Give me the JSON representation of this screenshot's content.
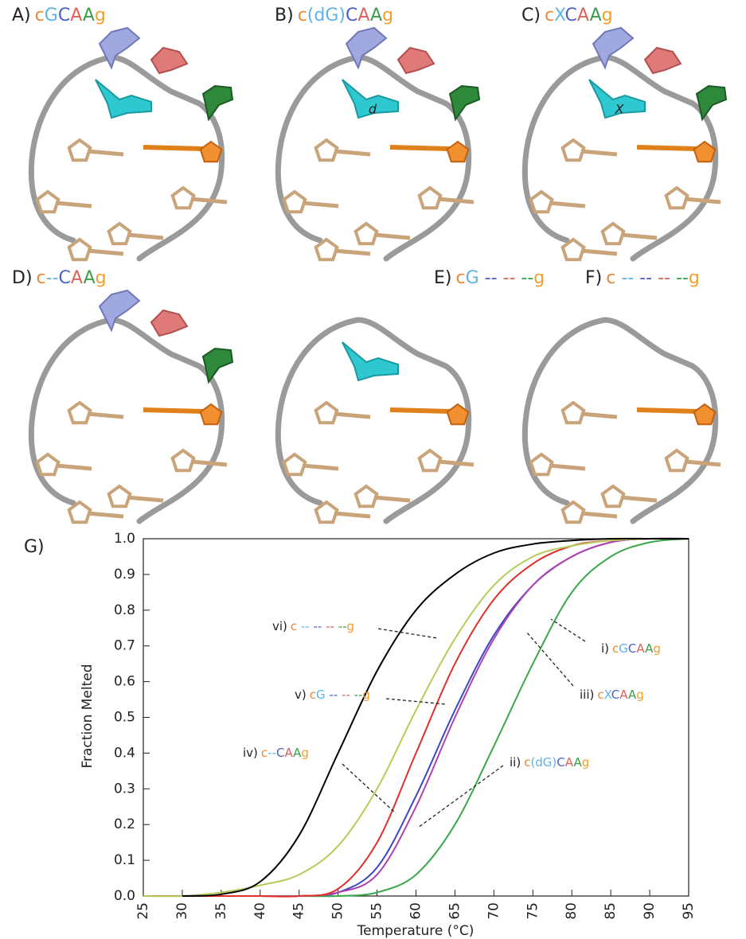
{
  "panels": [
    {
      "label": "A)",
      "parts": [
        {
          "text": "c",
          "color": "#e8893a"
        },
        {
          "text": "G",
          "color": "#5fb4e4"
        },
        {
          "text": "C",
          "color": "#4f5fc4"
        },
        {
          "text": "A",
          "color": "#e0605a"
        },
        {
          "text": "A",
          "color": "#3a9e4a"
        },
        {
          "text": "g",
          "color": "#f0a030"
        }
      ]
    },
    {
      "label": "B)",
      "parts": [
        {
          "text": "c",
          "color": "#e8893a"
        },
        {
          "text": "(dG)",
          "color": "#5fb4e4"
        },
        {
          "text": "C",
          "color": "#4f5fc4"
        },
        {
          "text": "A",
          "color": "#e0605a"
        },
        {
          "text": "A",
          "color": "#3a9e4a"
        },
        {
          "text": "g",
          "color": "#f0a030"
        }
      ],
      "marker": "d"
    },
    {
      "label": "C)",
      "parts": [
        {
          "text": "c",
          "color": "#e8893a"
        },
        {
          "text": "X",
          "color": "#5fb4e4"
        },
        {
          "text": "C",
          "color": "#4f5fc4"
        },
        {
          "text": "A",
          "color": "#e0605a"
        },
        {
          "text": "A",
          "color": "#3a9e4a"
        },
        {
          "text": "g",
          "color": "#f0a030"
        }
      ],
      "marker": "X"
    },
    {
      "label": "D)",
      "parts": [
        {
          "text": "c",
          "color": "#e8893a"
        },
        {
          "text": "--",
          "color": "#5fb4e4"
        },
        {
          "text": "C",
          "color": "#4f5fc4"
        },
        {
          "text": "A",
          "color": "#e0605a"
        },
        {
          "text": "A",
          "color": "#3a9e4a"
        },
        {
          "text": "g",
          "color": "#f0a030"
        }
      ]
    },
    {
      "label": "E)",
      "parts": [
        {
          "text": "c",
          "color": "#e8893a"
        },
        {
          "text": "G",
          "color": "#5fb4e4"
        },
        {
          "text": " --",
          "color": "#4f5fc4"
        },
        {
          "text": " --",
          "color": "#e0605a"
        },
        {
          "text": " --",
          "color": "#3a9e4a"
        },
        {
          "text": "g",
          "color": "#f0a030"
        }
      ]
    },
    {
      "label": "F)",
      "parts": [
        {
          "text": "c",
          "color": "#e8893a"
        },
        {
          "text": " --",
          "color": "#5fb4e4"
        },
        {
          "text": " --",
          "color": "#4f5fc4"
        },
        {
          "text": " --",
          "color": "#e0605a"
        },
        {
          "text": " --",
          "color": "#3a9e4a"
        },
        {
          "text": "g",
          "color": "#f0a030"
        }
      ]
    }
  ],
  "chart_data": {
    "type": "line",
    "title": "G)",
    "xlabel": "Temperature (°C)",
    "ylabel": "Fraction Melted",
    "x": [
      25,
      30,
      35,
      40,
      45,
      50,
      55,
      60,
      65,
      70,
      75,
      80,
      85,
      90,
      95
    ],
    "xlim": [
      25,
      95
    ],
    "xticks": [
      25,
      30,
      35,
      40,
      45,
      50,
      55,
      60,
      65,
      70,
      75,
      80,
      85,
      90,
      95
    ],
    "ylim": [
      0,
      1
    ],
    "yticks": [
      {
        "value": 0,
        "label": "0.0"
      },
      0.1,
      0.2,
      0.3,
      0.4,
      0.5,
      0.6,
      0.7,
      0.8,
      0.9,
      {
        "value": 1,
        "label": "1.0"
      }
    ],
    "series": [
      {
        "color": "#3a48c0",
        "values": [
          0,
          0,
          0,
          0,
          0,
          0.01,
          0.08,
          0.28,
          0.52,
          0.73,
          0.87,
          0.95,
          0.99,
          1,
          1
        ],
        "label": [
          {
            "text": "i)",
            "color": "#222222"
          },
          {
            "text": "c",
            "color": "#e8893a"
          },
          {
            "text": "G",
            "color": "#5fb4e4"
          },
          {
            "text": "C",
            "color": "#4f5fc4"
          },
          {
            "text": "A",
            "color": "#e0605a"
          },
          {
            "text": "A",
            "color": "#3a9e4a"
          },
          {
            "text": "g",
            "color": "#f0a030"
          }
        ]
      },
      {
        "color": "#3aa84a",
        "values": [
          0,
          0,
          0,
          0,
          0,
          0,
          0.01,
          0.06,
          0.2,
          0.42,
          0.65,
          0.85,
          0.95,
          0.99,
          1
        ],
        "label": [
          {
            "text": "ii)",
            "color": "#222222"
          },
          {
            "text": "c",
            "color": "#e8893a"
          },
          {
            "text": "(dG)",
            "color": "#5fb4e4"
          },
          {
            "text": "C",
            "color": "#4f5fc4"
          },
          {
            "text": "A",
            "color": "#e0605a"
          },
          {
            "text": "A",
            "color": "#3a9e4a"
          },
          {
            "text": "g",
            "color": "#f0a030"
          }
        ]
      },
      {
        "color": "#b040b0",
        "values": [
          0,
          0,
          0,
          0,
          0,
          0.01,
          0.06,
          0.25,
          0.5,
          0.72,
          0.87,
          0.95,
          0.99,
          1,
          1
        ],
        "label": [
          {
            "text": "iii)",
            "color": "#222222"
          },
          {
            "text": "c",
            "color": "#e8893a"
          },
          {
            "text": "X",
            "color": "#5fb4e4"
          },
          {
            "text": "C",
            "color": "#4f5fc4"
          },
          {
            "text": "A",
            "color": "#e0605a"
          },
          {
            "text": "A",
            "color": "#3a9e4a"
          },
          {
            "text": "g",
            "color": "#f0a030"
          }
        ]
      },
      {
        "color": "#e0302a",
        "values": [
          0,
          0,
          0,
          0,
          0,
          0.02,
          0.15,
          0.4,
          0.65,
          0.83,
          0.93,
          0.98,
          0.995,
          1,
          1
        ],
        "label": [
          {
            "text": "iv)",
            "color": "#222222"
          },
          {
            "text": "c",
            "color": "#e8893a"
          },
          {
            "text": "--",
            "color": "#5fb4e4"
          },
          {
            "text": "C",
            "color": "#4f5fc4"
          },
          {
            "text": "A",
            "color": "#e0605a"
          },
          {
            "text": "A",
            "color": "#3a9e4a"
          },
          {
            "text": "g",
            "color": "#f0a030"
          }
        ]
      },
      {
        "color": "#b5cc5a",
        "values": [
          0,
          0,
          0.01,
          0.03,
          0.06,
          0.14,
          0.3,
          0.52,
          0.72,
          0.87,
          0.95,
          0.98,
          0.995,
          1,
          1
        ],
        "label": [
          {
            "text": "v)",
            "color": "#222222"
          },
          {
            "text": "c",
            "color": "#e8893a"
          },
          {
            "text": "G",
            "color": "#5fb4e4"
          },
          {
            "text": " --",
            "color": "#4f5fc4"
          },
          {
            "text": " --",
            "color": "#e0605a"
          },
          {
            "text": " --",
            "color": "#3a9e4a"
          },
          {
            "text": "g",
            "color": "#f0a030"
          }
        ]
      },
      {
        "color": "#000000",
        "values": [
          null,
          0,
          0.005,
          0.04,
          0.17,
          0.4,
          0.63,
          0.8,
          0.9,
          0.96,
          0.985,
          0.995,
          1,
          1,
          1
        ],
        "label": [
          {
            "text": "vi)",
            "color": "#222222"
          },
          {
            "text": "c",
            "color": "#e8893a"
          },
          {
            "text": " --",
            "color": "#5fb4e4"
          },
          {
            "text": " --",
            "color": "#4f5fc4"
          },
          {
            "text": " --",
            "color": "#e0605a"
          },
          {
            "text": " --",
            "color": "#3a9e4a"
          },
          {
            "text": "g",
            "color": "#f0a030"
          }
        ]
      }
    ]
  }
}
